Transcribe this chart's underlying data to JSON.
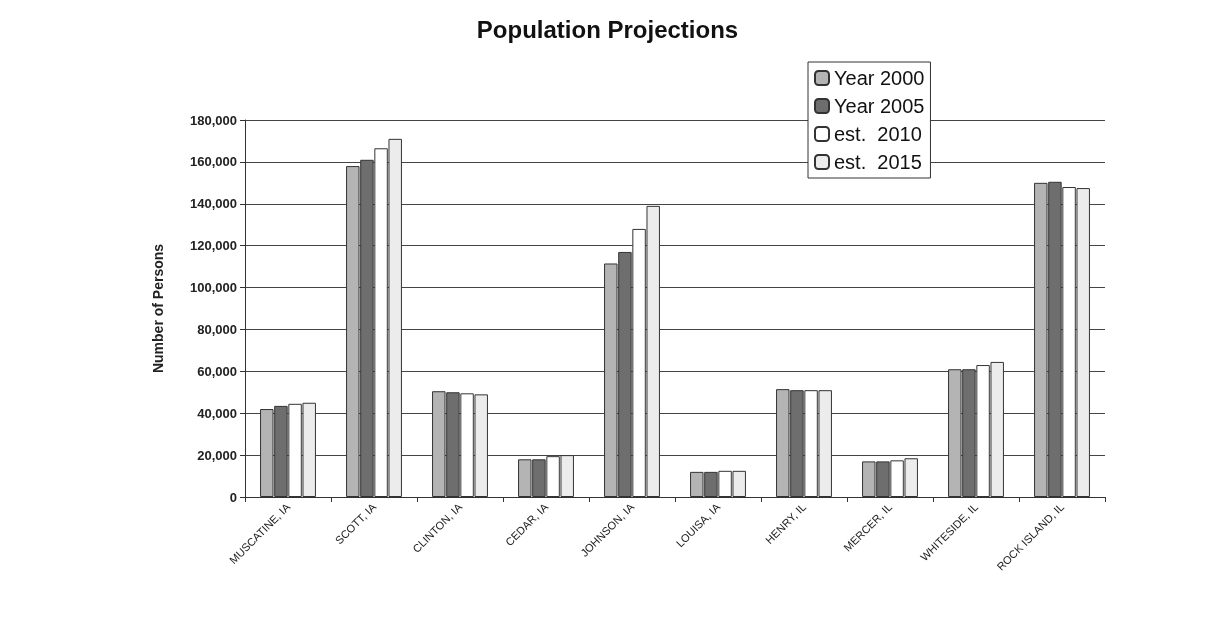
{
  "chart_data": {
    "type": "bar",
    "title": "Population Projections",
    "ylabel": "Number of Persons",
    "categories": [
      "MUSCATINE, IA",
      "SCOTT, IA",
      "CLINTON, IA",
      "CEDAR, IA",
      "JOHNSON, IA",
      "LOUISA, IA",
      "HENRY, IL",
      "MERCER, IL",
      "WHITESIDE, IL",
      "ROCK ISLAND, IL"
    ],
    "series": [
      {
        "name": "Year 2000",
        "color": "#b4b4b4",
        "values": [
          42000,
          158000,
          50500,
          18000,
          111500,
          12000,
          51500,
          17000,
          61000,
          150000
        ]
      },
      {
        "name": "Year 2005",
        "color": "#6e6e6e",
        "values": [
          43500,
          161000,
          50000,
          18000,
          117000,
          12000,
          51000,
          17000,
          61000,
          150500
        ]
      },
      {
        "name": "est.  2010",
        "color": "#ffffff",
        "values": [
          44500,
          166500,
          49500,
          19500,
          128000,
          12500,
          51000,
          17500,
          63000,
          148000
        ]
      },
      {
        "name": "est.  2015",
        "color": "#ececec",
        "values": [
          45000,
          171000,
          49000,
          20000,
          139000,
          12500,
          51000,
          18500,
          64500,
          147500
        ]
      }
    ],
    "ylim": [
      0,
      180000
    ],
    "yticks": [
      0,
      {
        "value": 20000,
        "label": "20,000"
      },
      {
        "value": 40000,
        "label": "40,000"
      },
      {
        "value": 60000,
        "label": "60,000"
      },
      {
        "value": 80000,
        "label": "80,000"
      },
      {
        "value": 100000,
        "label": "100,000"
      },
      {
        "value": 120000,
        "label": "120,000"
      },
      {
        "value": 140000,
        "label": "140,000"
      },
      {
        "value": 160000,
        "label": "160,000"
      },
      {
        "value": 180000,
        "label": "180,000"
      }
    ],
    "grid": "y",
    "legend": "top right"
  }
}
